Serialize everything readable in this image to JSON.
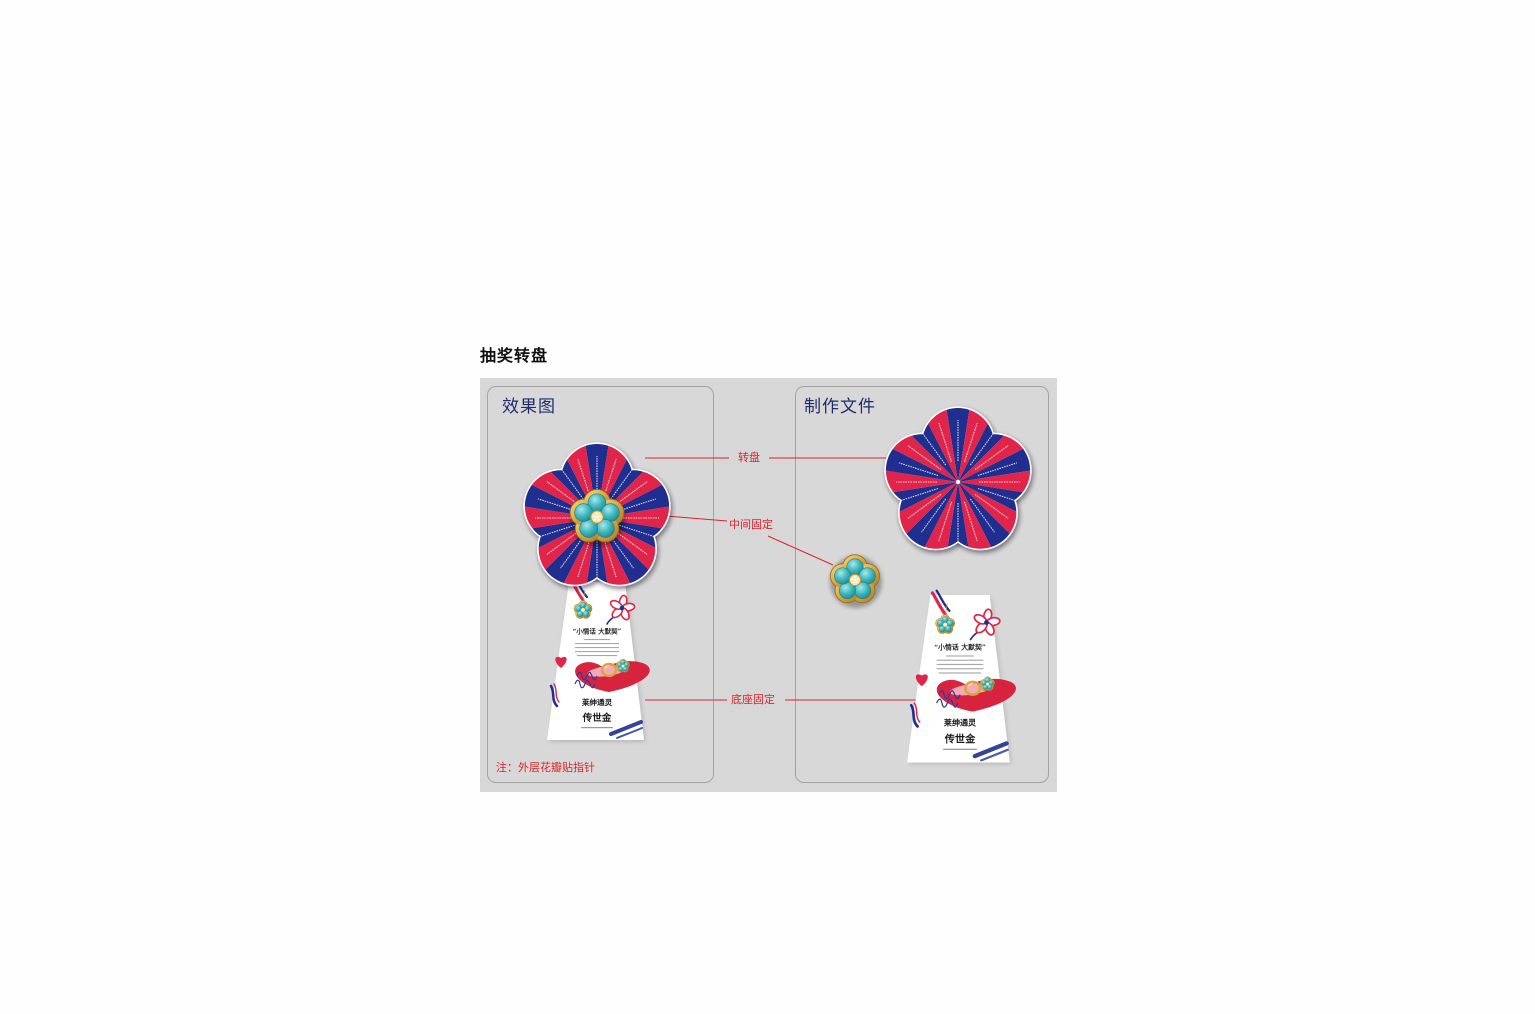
{
  "page": {
    "title": "抽奖转盘"
  },
  "panels": {
    "effect": {
      "title": "效果图",
      "note": "注：外层花瓣贴指针"
    },
    "production": {
      "title": "制作文件"
    }
  },
  "callouts": {
    "wheel": "转盘",
    "center_fix": "中间固定",
    "base_fix": "底座固定"
  },
  "base": {
    "slogan": "“小情话 大默契”",
    "brand": "莱绅通灵",
    "product": "传世金"
  },
  "colors": {
    "wheel_red": "#e1244a",
    "wheel_blue": "#1f2e8f",
    "turquoise": "#3fb7be",
    "gold": "#d9a63a",
    "callout_red": "#d7262c",
    "panel_title_navy": "#1f2a6b",
    "board_gray": "#d8d7d7"
  }
}
